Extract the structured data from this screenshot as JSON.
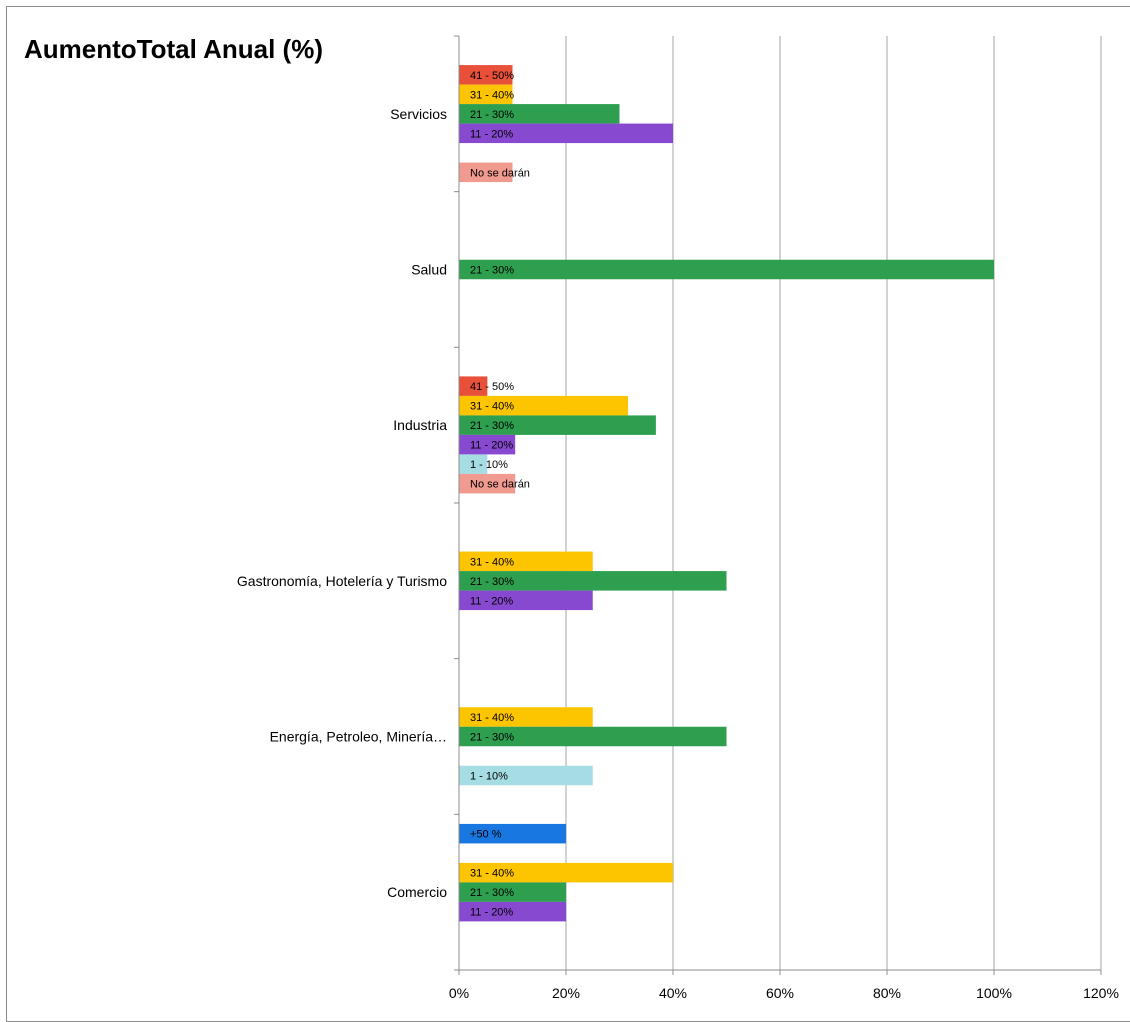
{
  "chart_data": {
    "type": "bar",
    "orientation": "horizontal",
    "title": "AumentoTotal Anual (%)",
    "xlabel": "",
    "ylabel": "",
    "xlim": [
      0,
      120
    ],
    "x_ticks": [
      "0%",
      "20%",
      "40%",
      "60%",
      "80%",
      "100%",
      "120%"
    ],
    "grid": true,
    "legend": "none",
    "categories": [
      "Servicios",
      "Salud",
      "Industria",
      "Gastronomía, Hotelería y Turismo",
      "Energía, Petroleo, Minería…",
      "Comercio"
    ],
    "series_order_top_to_bottom": [
      "+50 %",
      "41 - 50%",
      "31 - 40%",
      "21 - 30%",
      "11 - 20%",
      "1 - 10%",
      "No se darán"
    ],
    "series": [
      {
        "name": "+50 %",
        "color": "#1877e0",
        "values": [
          null,
          null,
          null,
          null,
          null,
          20
        ]
      },
      {
        "name": "41 - 50%",
        "color": "#e8503a",
        "values": [
          10,
          null,
          5.3,
          null,
          null,
          null
        ]
      },
      {
        "name": "31 - 40%",
        "color": "#fdc400",
        "values": [
          10,
          null,
          31.6,
          25,
          25,
          40
        ]
      },
      {
        "name": "21 - 30%",
        "color": "#2e9e4f",
        "values": [
          30,
          100,
          36.8,
          50,
          50,
          20
        ]
      },
      {
        "name": "11 - 20%",
        "color": "#8649cf",
        "values": [
          40,
          null,
          10.5,
          25,
          null,
          20
        ]
      },
      {
        "name": "1 - 10%",
        "color": "#a6dde4",
        "values": [
          null,
          null,
          5.3,
          null,
          25,
          null
        ]
      },
      {
        "name": "No se darán",
        "color": "#f09a90",
        "values": [
          10,
          null,
          10.5,
          null,
          null,
          null
        ]
      }
    ]
  }
}
